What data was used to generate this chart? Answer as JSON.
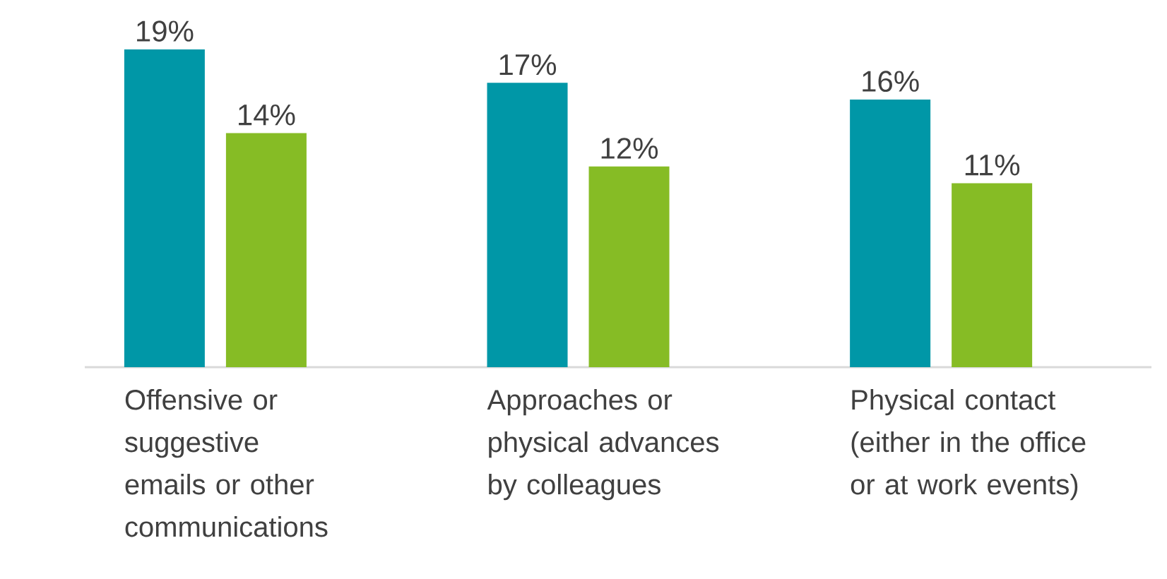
{
  "chart_data": {
    "type": "bar",
    "categories": [
      "Offensive or suggestive emails or other communications",
      "Approaches or physical advances by colleagues",
      "Physical contact (either in the office or at work events)"
    ],
    "series": [
      {
        "color": "#0097a7",
        "values": [
          19,
          17,
          16
        ],
        "value_labels": [
          "19%",
          "17%",
          "16%"
        ]
      },
      {
        "color": "#86bc25",
        "values": [
          14,
          12,
          11
        ],
        "value_labels": [
          "14%",
          "12%",
          "11%"
        ]
      }
    ]
  }
}
